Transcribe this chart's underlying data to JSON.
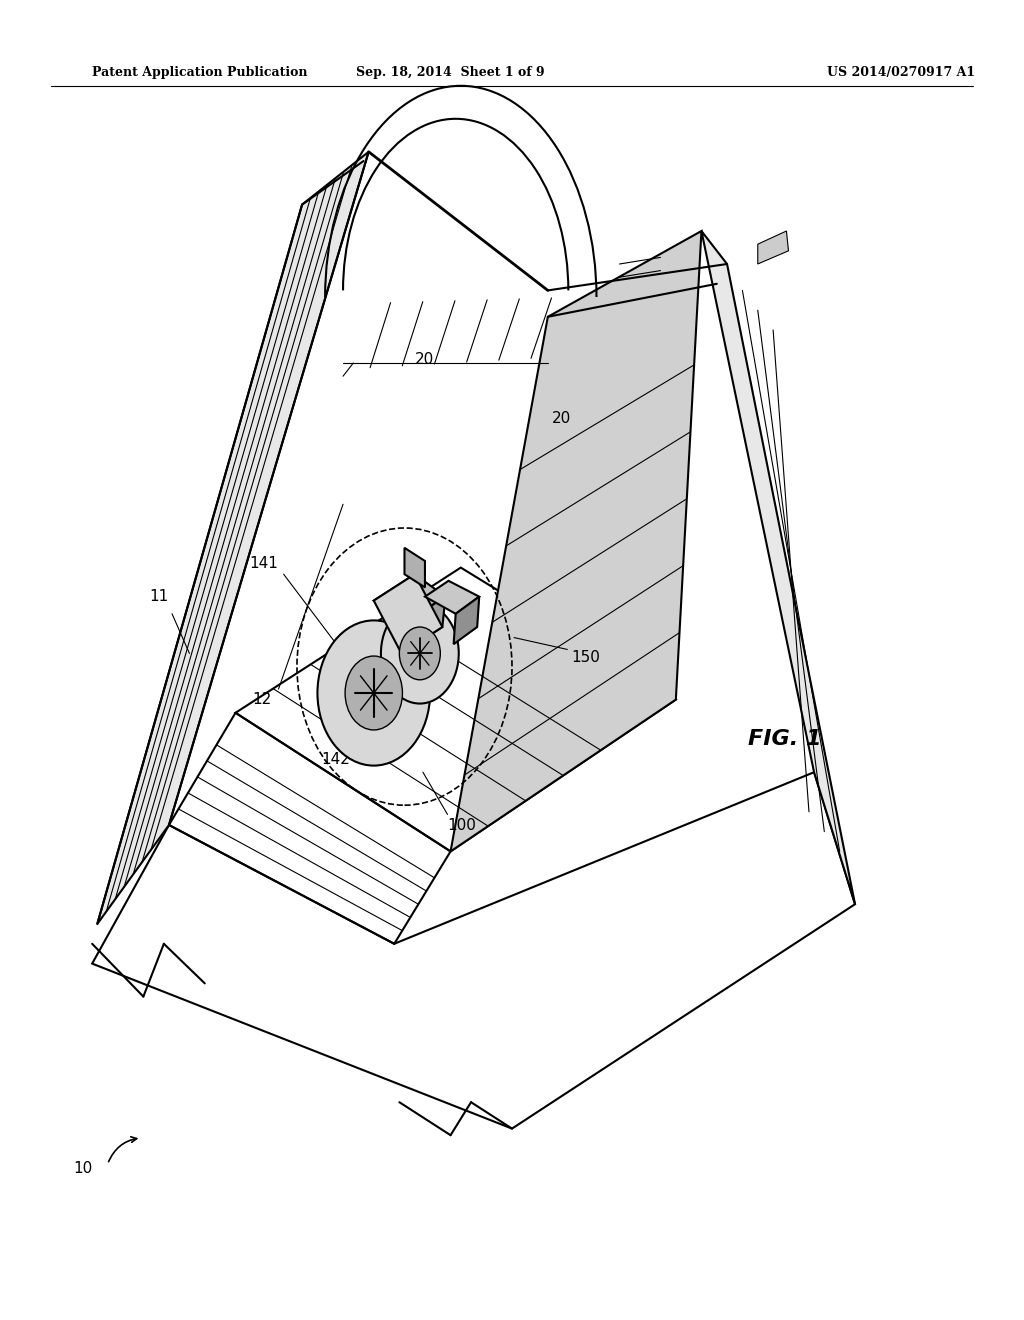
{
  "bg_color": "#ffffff",
  "header_left": "Patent Application Publication",
  "header_mid": "Sep. 18, 2014  Sheet 1 of 9",
  "header_right": "US 2014/0270917 A1",
  "fig_label": "FIG. 1",
  "line_color": "#000000",
  "lw": 1.5,
  "thin_lw": 0.8
}
